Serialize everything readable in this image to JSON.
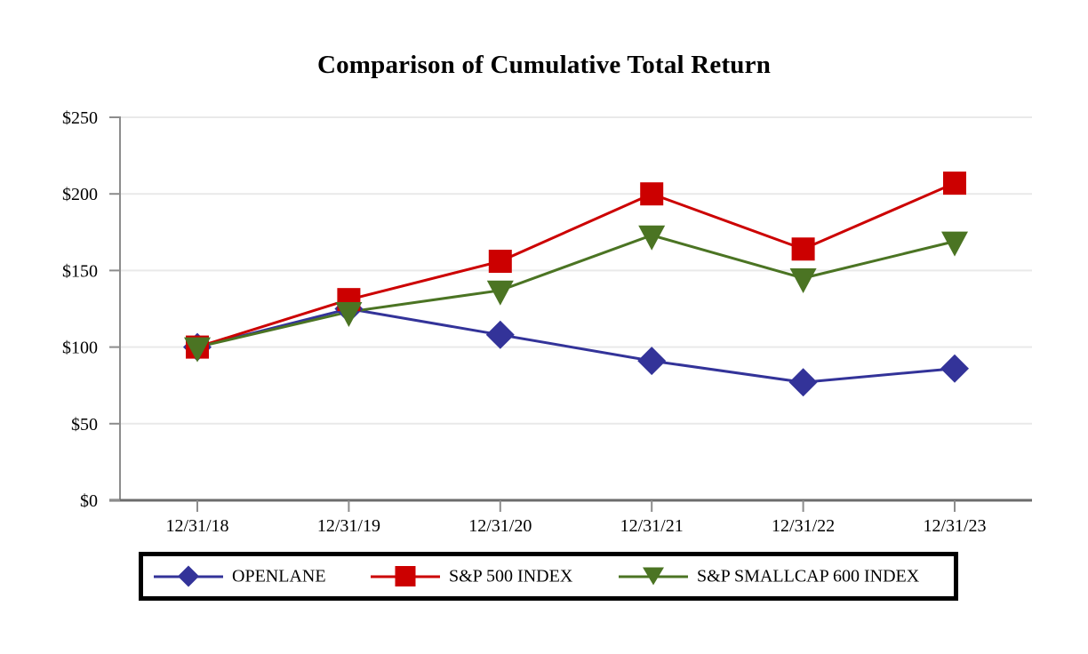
{
  "page": {
    "title": "Comparison of Cumulative Total Return"
  },
  "legend": {
    "items": [
      {
        "label": "OPENLANE",
        "color": "#333399",
        "marker": "diamond"
      },
      {
        "label": "S&P 500 INDEX",
        "color": "#CC0000",
        "marker": "square"
      },
      {
        "label": "S&P SMALLCAP 600 INDEX",
        "color": "#4B7423",
        "marker": "triangle-down"
      }
    ]
  },
  "chart_data": {
    "type": "line",
    "title": "Comparison of Cumulative Total Return",
    "x": [
      "12/31/18",
      "12/31/19",
      "12/31/20",
      "12/31/21",
      "12/31/22",
      "12/31/23"
    ],
    "series": [
      {
        "name": "OPENLANE",
        "color": "#333399",
        "marker": "diamond",
        "values": [
          100,
          125,
          108,
          91,
          77,
          86
        ]
      },
      {
        "name": "S&P 500 INDEX",
        "color": "#CC0000",
        "marker": "square",
        "values": [
          100,
          131,
          156,
          200,
          164,
          207
        ]
      },
      {
        "name": "S&P SMALLCAP 600 INDEX",
        "color": "#4B7423",
        "marker": "triangle-down",
        "values": [
          100,
          123,
          137,
          173,
          145,
          169
        ]
      }
    ],
    "ylim": [
      0,
      250
    ],
    "y_ticks": [
      {
        "value": 0,
        "label": "$0"
      },
      {
        "value": 50,
        "label": "$50"
      },
      {
        "value": 100,
        "label": "$100"
      },
      {
        "value": 150,
        "label": "$150"
      },
      {
        "value": 200,
        "label": "$200"
      },
      {
        "value": 250,
        "label": "$250"
      }
    ],
    "grid": true,
    "legend_position": "bottom"
  },
  "colors": {
    "series_openlane": "#333399",
    "series_sp500": "#CC0000",
    "series_sp600": "#4B7423",
    "gridline": "#E9E9E9",
    "axis": "#8C8C8C",
    "baseline": "#6B6B6B",
    "text": "#000000",
    "background": "#FFFFFF"
  }
}
